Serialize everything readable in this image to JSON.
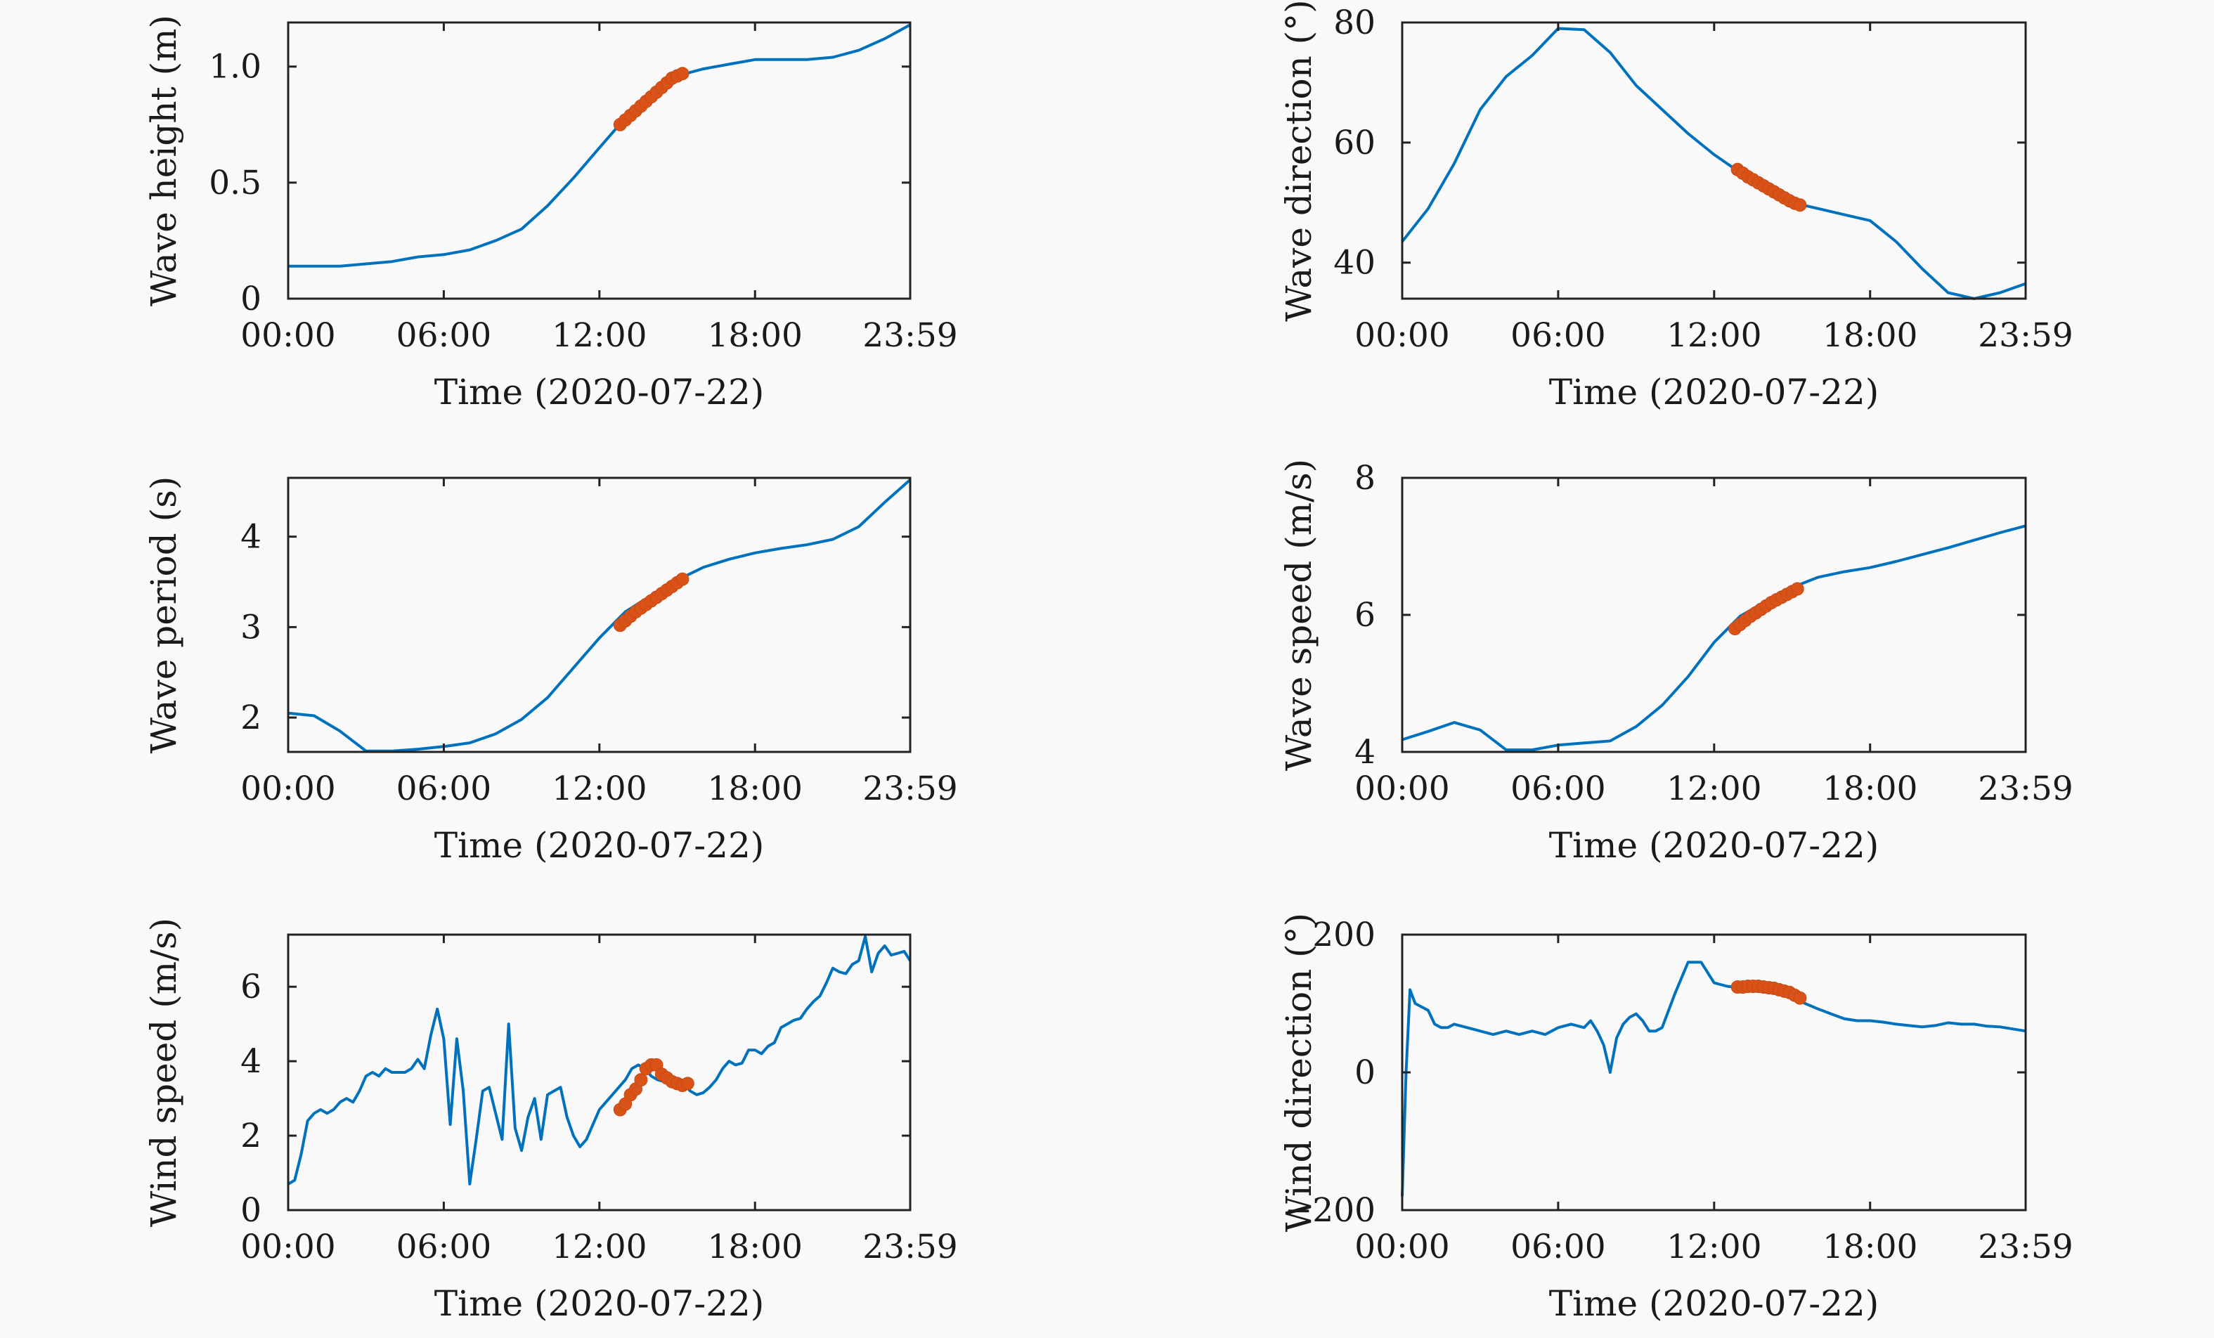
{
  "colors": {
    "line": "#0072bd",
    "highlight": "#d95319",
    "axes": "#222222",
    "background": "#f9f9f9"
  },
  "chart_data": [
    {
      "type": "line",
      "xlabel": "Time (2020-07-22)",
      "ylabel": "Wave height (m)",
      "xlim": [
        0,
        23.983
      ],
      "ylim": [
        0,
        1.19
      ],
      "x_ticks": [
        0,
        6,
        12,
        18,
        23.983
      ],
      "x_tick_labels": [
        "00:00",
        "06:00",
        "12:00",
        "18:00",
        "23:59"
      ],
      "y_ticks": [
        0,
        0.5,
        1.0
      ],
      "y_tick_labels": [
        "0",
        "0.5",
        "1.0"
      ],
      "grid": false,
      "series": [
        {
          "x": [
            0,
            1,
            2,
            3,
            4,
            5,
            6,
            7,
            8,
            9,
            10,
            11,
            12,
            12.7,
            13.5,
            14.3,
            15,
            16,
            17,
            18,
            19,
            20,
            21,
            22,
            23,
            23.983
          ],
          "y": [
            0.14,
            0.14,
            0.14,
            0.15,
            0.16,
            0.18,
            0.19,
            0.21,
            0.25,
            0.3,
            0.4,
            0.52,
            0.65,
            0.74,
            0.82,
            0.9,
            0.96,
            0.99,
            1.01,
            1.03,
            1.03,
            1.03,
            1.04,
            1.07,
            1.12,
            1.18
          ]
        }
      ],
      "highlight": {
        "x": [
          12.8,
          13.0,
          13.2,
          13.4,
          13.6,
          13.8,
          14.0,
          14.2,
          14.4,
          14.6,
          14.8,
          15.0,
          15.2
        ],
        "y": [
          0.75,
          0.77,
          0.79,
          0.81,
          0.83,
          0.85,
          0.87,
          0.89,
          0.91,
          0.93,
          0.95,
          0.96,
          0.97
        ]
      }
    },
    {
      "type": "line",
      "xlabel": "Time (2020-07-22)",
      "ylabel": "Wave direction (°)",
      "xlim": [
        0,
        23.983
      ],
      "ylim": [
        34,
        80
      ],
      "x_ticks": [
        0,
        6,
        12,
        18,
        23.983
      ],
      "x_tick_labels": [
        "00:00",
        "06:00",
        "12:00",
        "18:00",
        "23:59"
      ],
      "y_ticks": [
        40,
        60,
        80
      ],
      "y_tick_labels": [
        "40",
        "60",
        "80"
      ],
      "grid": false,
      "series": [
        {
          "x": [
            0,
            1,
            2,
            3,
            4,
            5,
            6,
            7,
            8,
            9,
            10,
            11,
            12,
            13,
            14,
            15,
            16,
            17,
            18,
            19,
            20,
            21,
            22,
            23,
            23.983
          ],
          "y": [
            43.5,
            49,
            56.5,
            65.5,
            71,
            74.5,
            79,
            78.8,
            75,
            69.5,
            65.5,
            61.5,
            58,
            55,
            52.5,
            50,
            49,
            48,
            47,
            43.5,
            39,
            35,
            34,
            35,
            36.5
          ]
        }
      ],
      "highlight": {
        "x": [
          12.9,
          13.1,
          13.3,
          13.5,
          13.7,
          13.9,
          14.1,
          14.3,
          14.5,
          14.7,
          14.9,
          15.1,
          15.3
        ],
        "y": [
          55.5,
          54.9,
          54.3,
          53.8,
          53.3,
          52.8,
          52.3,
          51.8,
          51.3,
          50.8,
          50.3,
          49.9,
          49.6
        ]
      }
    },
    {
      "type": "line",
      "xlabel": "Time (2020-07-22)",
      "ylabel": "Wave period (s)",
      "xlim": [
        0,
        23.983
      ],
      "ylim": [
        1.62,
        4.65
      ],
      "x_ticks": [
        0,
        6,
        12,
        18,
        23.983
      ],
      "x_tick_labels": [
        "00:00",
        "06:00",
        "12:00",
        "18:00",
        "23:59"
      ],
      "y_ticks": [
        2,
        3,
        4
      ],
      "y_tick_labels": [
        "2",
        "3",
        "4"
      ],
      "grid": false,
      "series": [
        {
          "x": [
            0,
            1,
            2,
            3,
            4,
            5,
            6,
            7,
            8,
            9,
            10,
            11,
            12,
            13,
            14,
            15,
            16,
            17,
            18,
            19,
            20,
            21,
            22,
            23,
            23.983
          ],
          "y": [
            2.05,
            2.02,
            1.85,
            1.63,
            1.63,
            1.65,
            1.68,
            1.72,
            1.82,
            1.98,
            2.22,
            2.55,
            2.88,
            3.17,
            3.35,
            3.52,
            3.66,
            3.75,
            3.82,
            3.87,
            3.91,
            3.97,
            4.11,
            4.38,
            4.63
          ]
        }
      ],
      "highlight": {
        "x": [
          12.8,
          13.0,
          13.2,
          13.4,
          13.6,
          13.8,
          14.0,
          14.2,
          14.4,
          14.6,
          14.8,
          15.0,
          15.2
        ],
        "y": [
          3.02,
          3.07,
          3.12,
          3.17,
          3.21,
          3.25,
          3.29,
          3.33,
          3.37,
          3.41,
          3.45,
          3.49,
          3.53
        ]
      }
    },
    {
      "type": "line",
      "xlabel": "Time (2020-07-22)",
      "ylabel": "Wave speed (m/s)",
      "xlim": [
        0,
        23.983
      ],
      "ylim": [
        4,
        8
      ],
      "x_ticks": [
        0,
        6,
        12,
        18,
        23.983
      ],
      "x_tick_labels": [
        "00:00",
        "06:00",
        "12:00",
        "18:00",
        "23:59"
      ],
      "y_ticks": [
        4,
        6,
        8
      ],
      "y_tick_labels": [
        "4",
        "6",
        "8"
      ],
      "grid": false,
      "series": [
        {
          "x": [
            0,
            1,
            2,
            3,
            4,
            5,
            6,
            7,
            8,
            9,
            10,
            11,
            12,
            13,
            14,
            15,
            16,
            17,
            18,
            19,
            20,
            21,
            22,
            23,
            23.983
          ],
          "y": [
            4.18,
            4.3,
            4.43,
            4.32,
            4.03,
            4.03,
            4.1,
            4.13,
            4.16,
            4.37,
            4.68,
            5.1,
            5.6,
            5.98,
            6.2,
            6.4,
            6.55,
            6.63,
            6.69,
            6.78,
            6.88,
            6.98,
            7.09,
            7.2,
            7.3
          ]
        }
      ],
      "highlight": {
        "x": [
          12.8,
          13.0,
          13.2,
          13.4,
          13.6,
          13.8,
          14.0,
          14.2,
          14.4,
          14.6,
          14.8,
          15.0,
          15.2
        ],
        "y": [
          5.8,
          5.86,
          5.92,
          5.98,
          6.03,
          6.08,
          6.13,
          6.18,
          6.22,
          6.26,
          6.3,
          6.34,
          6.38
        ]
      }
    },
    {
      "type": "line",
      "xlabel": "Time (2020-07-22)",
      "ylabel": "Wind speed (m/s)",
      "xlim": [
        0,
        23.983
      ],
      "ylim": [
        0,
        7.4
      ],
      "x_ticks": [
        0,
        6,
        12,
        18,
        23.983
      ],
      "x_tick_labels": [
        "00:00",
        "06:00",
        "12:00",
        "18:00",
        "23:59"
      ],
      "y_ticks": [
        0,
        2,
        4,
        6
      ],
      "y_tick_labels": [
        "0",
        "2",
        "4",
        "6"
      ],
      "grid": false,
      "series": [
        {
          "x": [
            0,
            0.25,
            0.5,
            0.75,
            1,
            1.25,
            1.5,
            1.75,
            2,
            2.25,
            2.5,
            2.75,
            3,
            3.25,
            3.5,
            3.75,
            4,
            4.25,
            4.5,
            4.75,
            5,
            5.25,
            5.5,
            5.75,
            6,
            6.25,
            6.5,
            6.75,
            7,
            7.25,
            7.5,
            7.75,
            8,
            8.25,
            8.5,
            8.75,
            9,
            9.25,
            9.5,
            9.75,
            10,
            10.25,
            10.5,
            10.75,
            11,
            11.25,
            11.5,
            11.75,
            12,
            12.25,
            12.5,
            12.75,
            13,
            13.25,
            13.5,
            13.75,
            14,
            14.25,
            14.5,
            14.75,
            15,
            15.25,
            15.5,
            15.75,
            16,
            16.25,
            16.5,
            16.75,
            17,
            17.25,
            17.5,
            17.75,
            18,
            18.25,
            18.5,
            18.75,
            19,
            19.25,
            19.5,
            19.75,
            20,
            20.25,
            20.5,
            20.75,
            21,
            21.25,
            21.5,
            21.75,
            22,
            22.25,
            22.5,
            22.75,
            23,
            23.25,
            23.5,
            23.75,
            23.983
          ],
          "y": [
            0.7,
            0.8,
            1.5,
            2.4,
            2.6,
            2.7,
            2.6,
            2.7,
            2.9,
            3.0,
            2.9,
            3.2,
            3.6,
            3.7,
            3.6,
            3.8,
            3.7,
            3.7,
            3.7,
            3.8,
            4.05,
            3.8,
            4.7,
            5.4,
            4.6,
            2.3,
            4.6,
            3.2,
            0.7,
            1.9,
            3.2,
            3.3,
            2.6,
            1.9,
            5.0,
            2.2,
            1.6,
            2.5,
            3.0,
            1.9,
            3.1,
            3.2,
            3.3,
            2.5,
            2.0,
            1.7,
            1.9,
            2.3,
            2.7,
            2.9,
            3.1,
            3.3,
            3.5,
            3.8,
            3.9,
            3.8,
            3.6,
            3.5,
            3.45,
            3.35,
            3.4,
            3.4,
            3.2,
            3.1,
            3.15,
            3.3,
            3.5,
            3.8,
            4.0,
            3.9,
            3.95,
            4.3,
            4.3,
            4.2,
            4.4,
            4.5,
            4.9,
            5.0,
            5.1,
            5.15,
            5.4,
            5.6,
            5.75,
            6.1,
            6.5,
            6.4,
            6.35,
            6.6,
            6.7,
            7.35,
            6.4,
            6.9,
            7.1,
            6.85,
            6.9,
            6.95,
            6.7
          ]
        }
      ],
      "highlight": {
        "x": [
          12.8,
          13.0,
          13.2,
          13.4,
          13.6,
          13.8,
          14.0,
          14.2,
          14.4,
          14.6,
          14.8,
          15.0,
          15.2,
          15.4
        ],
        "y": [
          2.7,
          2.85,
          3.1,
          3.25,
          3.5,
          3.8,
          3.9,
          3.9,
          3.65,
          3.55,
          3.45,
          3.4,
          3.35,
          3.4
        ]
      }
    },
    {
      "type": "line",
      "xlabel": "Time (2020-07-22)",
      "ylabel": "Wind direction (°)",
      "xlim": [
        0,
        23.983
      ],
      "ylim": [
        -200,
        200
      ],
      "x_ticks": [
        0,
        6,
        12,
        18,
        23.983
      ],
      "x_tick_labels": [
        "00:00",
        "06:00",
        "12:00",
        "18:00",
        "23:59"
      ],
      "y_ticks": [
        -200,
        0,
        200
      ],
      "y_tick_labels": [
        "−200",
        "0",
        "200"
      ],
      "grid": false,
      "series": [
        {
          "x": [
            0,
            0.15,
            0.3,
            0.5,
            0.75,
            1.0,
            1.25,
            1.5,
            1.75,
            2.0,
            2.5,
            3.0,
            3.5,
            4.0,
            4.5,
            5.0,
            5.5,
            6.0,
            6.5,
            7.0,
            7.25,
            7.5,
            7.75,
            8.0,
            8.25,
            8.5,
            8.75,
            9.0,
            9.25,
            9.5,
            9.75,
            10.0,
            10.5,
            11.0,
            11.5,
            12.0,
            12.5,
            13.0,
            13.5,
            14.0,
            14.5,
            15.0,
            15.5,
            16.0,
            16.5,
            17.0,
            17.5,
            18.0,
            18.5,
            19.0,
            19.5,
            20.0,
            20.5,
            21.0,
            21.5,
            22.0,
            22.5,
            23.0,
            23.5,
            23.983
          ],
          "y": [
            -180,
            0,
            120,
            100,
            95,
            90,
            70,
            65,
            65,
            70,
            65,
            60,
            55,
            60,
            55,
            60,
            55,
            65,
            70,
            65,
            75,
            60,
            40,
            0,
            50,
            70,
            80,
            85,
            75,
            60,
            60,
            65,
            115,
            160,
            160,
            130,
            125,
            123,
            120,
            120,
            115,
            110,
            100,
            92,
            85,
            78,
            75,
            75,
            73,
            70,
            68,
            66,
            68,
            72,
            70,
            70,
            67,
            66,
            63,
            60
          ]
        }
      ],
      "highlight": {
        "x": [
          12.9,
          13.1,
          13.3,
          13.5,
          13.7,
          13.9,
          14.1,
          14.3,
          14.5,
          14.7,
          14.9,
          15.1,
          15.3
        ],
        "y": [
          124,
          124,
          125,
          125,
          125,
          124,
          123,
          122,
          120,
          118,
          116,
          112,
          108
        ]
      }
    }
  ]
}
